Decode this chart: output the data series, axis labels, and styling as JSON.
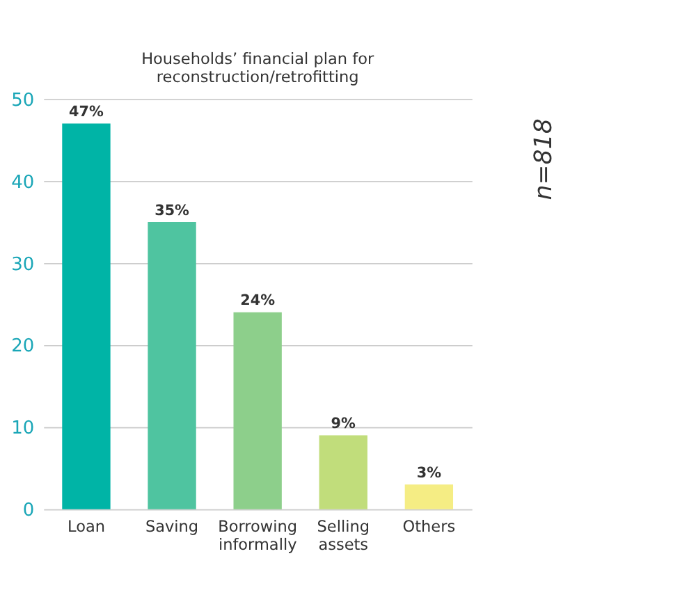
{
  "chart_data": {
    "type": "bar",
    "title": [
      "Households’ financial plan for",
      "reconstruction/retrofitting"
    ],
    "categories": [
      "Loan",
      "Saving",
      "Borrowing informally",
      "Selling assets",
      "Others"
    ],
    "values": [
      47,
      35,
      24,
      9,
      3
    ],
    "colors": [
      "#00b4a6",
      "#4fc4a0",
      "#8dcf8b",
      "#c1dd7b",
      "#f5ed84"
    ],
    "value_labels": [
      "47%",
      "35%",
      "24%",
      "9%",
      "3%"
    ],
    "ylim": [
      0,
      50
    ],
    "yticks": [
      0,
      10,
      20,
      30,
      40,
      50
    ],
    "grid": "y",
    "annotations": [
      "n=818"
    ]
  }
}
